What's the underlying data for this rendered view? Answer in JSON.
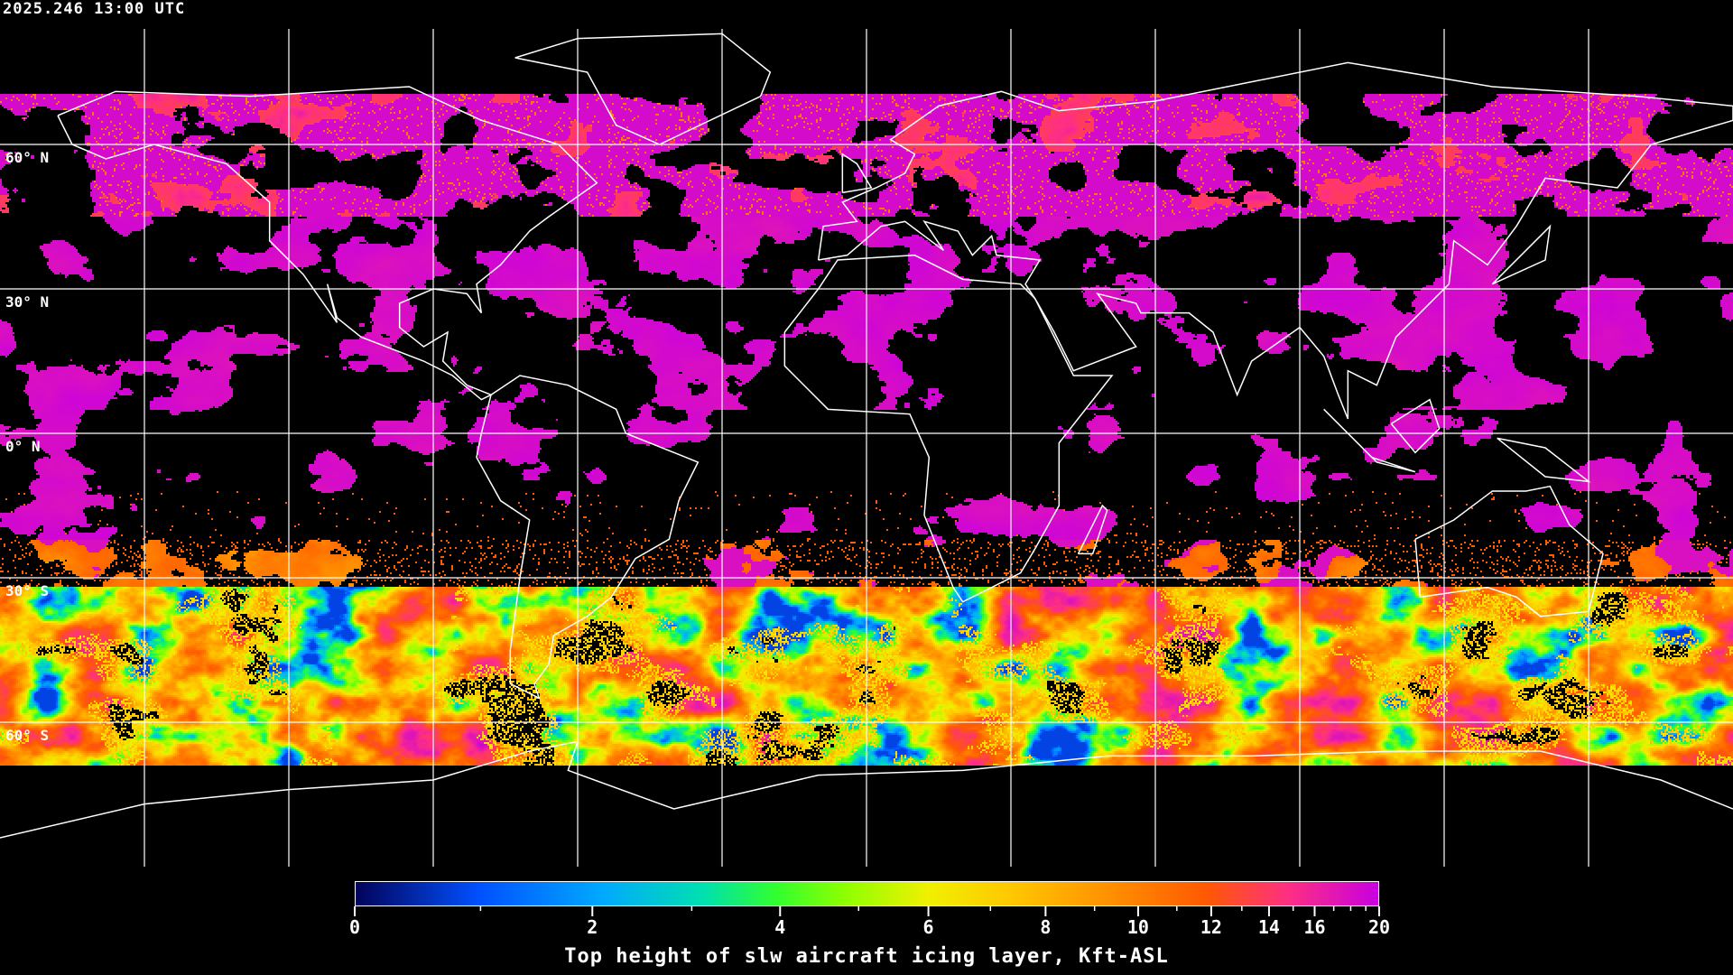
{
  "header": {
    "timestamp": "2025.246 13:00 UTC"
  },
  "map": {
    "projection": "equirectangular",
    "lon_range": [
      -180,
      180
    ],
    "lat_range": [
      -90,
      90
    ],
    "grid_spacing_deg": 30,
    "grid_color": "#ffffff",
    "coastline_color": "#ffffff",
    "lat_labels": [
      {
        "lat": 60,
        "text": "60° N"
      },
      {
        "lat": 30,
        "text": "30° N"
      },
      {
        "lat": 0,
        "text": "0° N"
      },
      {
        "lat": -30,
        "text": "30° S"
      },
      {
        "lat": -60,
        "text": "60° S"
      }
    ]
  },
  "colorbar": {
    "title": "Top height of slw aircraft icing layer, Kft-ASL",
    "range": [
      0,
      20
    ],
    "major_ticks": [
      {
        "value": 0,
        "label": "0"
      },
      {
        "value": 2,
        "label": "2"
      },
      {
        "value": 4,
        "label": "4"
      },
      {
        "value": 6,
        "label": "6"
      },
      {
        "value": 8,
        "label": "8"
      },
      {
        "value": 10,
        "label": "10"
      },
      {
        "value": 12,
        "label": "12"
      },
      {
        "value": 14,
        "label": "14"
      },
      {
        "value": 16,
        "label": "16"
      },
      {
        "value": 20,
        "label": "20"
      }
    ],
    "minor_ticks": [
      1,
      3,
      5,
      7,
      9,
      11,
      13,
      15,
      17,
      18,
      19
    ],
    "colorscale": [
      {
        "f": 0.0,
        "color": "#03035a"
      },
      {
        "f": 0.12,
        "color": "#0050ff"
      },
      {
        "f": 0.24,
        "color": "#00a8ff"
      },
      {
        "f": 0.34,
        "color": "#00e0b0"
      },
      {
        "f": 0.41,
        "color": "#30ff30"
      },
      {
        "f": 0.48,
        "color": "#90ff00"
      },
      {
        "f": 0.56,
        "color": "#f0f000"
      },
      {
        "f": 0.64,
        "color": "#ffc800"
      },
      {
        "f": 0.72,
        "color": "#ff9a00"
      },
      {
        "f": 0.83,
        "color": "#ff5a00"
      },
      {
        "f": 0.91,
        "color": "#ff3080"
      },
      {
        "f": 1.0,
        "color": "#c800e0"
      }
    ]
  }
}
